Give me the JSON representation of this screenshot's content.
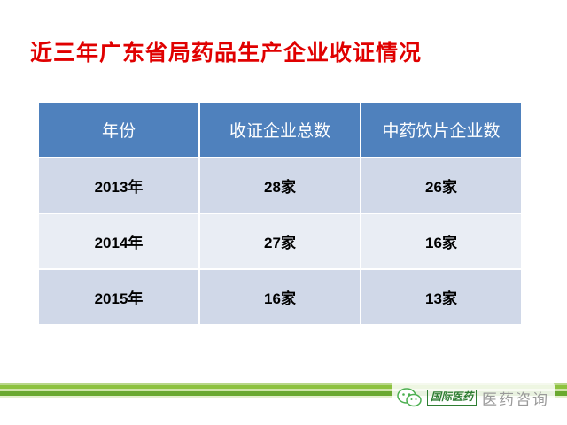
{
  "slide": {
    "title": "近三年广东省局药品生产企业收证情况"
  },
  "table": {
    "headers": [
      "年份",
      "收证企业总数",
      "中药饮片企业数"
    ],
    "rows": [
      [
        "2013年",
        "28家",
        "26家"
      ],
      [
        "2014年",
        "27家",
        "16家"
      ],
      [
        "2015年",
        "16家",
        "13家"
      ]
    ]
  },
  "watermark": {
    "brand": "国际医药",
    "text": "医药咨询",
    "icon": "wechat-icon"
  },
  "colors": {
    "title": "#e00000",
    "header_bg": "#4f81bd",
    "row_odd_bg": "#d0d8e8",
    "row_even_bg": "#e9edf4",
    "stripe_green": "#8dc23f"
  }
}
